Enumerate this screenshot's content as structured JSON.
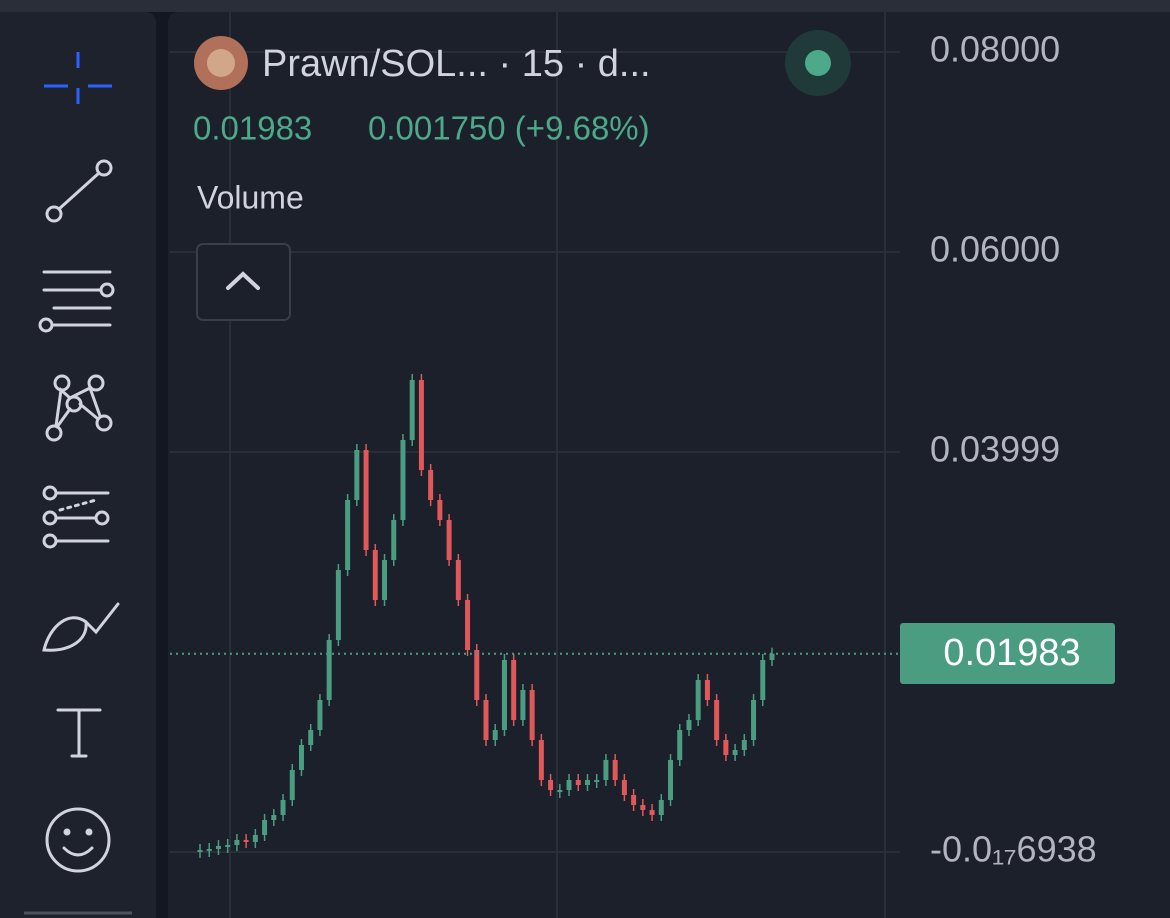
{
  "header": {
    "title": "Prawn/SOL... · 15 · d...",
    "price": "0.01983",
    "change": "0.001750 (+9.68%)",
    "indicator": "Volume"
  },
  "chart_data": {
    "type": "candlestick",
    "values": [
      0.0002,
      0.0003,
      0.0006,
      0.0007,
      0.0012,
      0.001,
      0.0017,
      0.0032,
      0.0037,
      0.0052,
      0.0082,
      0.0107,
      0.0122,
      0.0152,
      0.0212,
      0.0282,
      0.0352,
      0.0402,
      0.0302,
      0.0252,
      0.0292,
      0.0332,
      0.0412,
      0.0472,
      0.0382,
      0.0352,
      0.0332,
      0.0292,
      0.0252,
      0.0202,
      0.0152,
      0.0112,
      0.0122,
      0.0192,
      0.0132,
      0.0162,
      0.0112,
      0.0072,
      0.0062,
      0.0062,
      0.0072,
      0.0067,
      0.0072,
      0.0072,
      0.0092,
      0.0072,
      0.0057,
      0.0047,
      0.0042,
      0.0037,
      0.0052,
      0.0092,
      0.0122,
      0.0132,
      0.0172,
      0.0152,
      0.0112,
      0.0097,
      0.0102,
      0.0112,
      0.0152,
      0.0192,
      0.01983
    ],
    "up_color": "#4a9d80",
    "down_color": "#e0585a",
    "ylim": [
      -0.0066,
      0.084
    ],
    "yticks": [
      {
        "value": 0.08,
        "label": "0.08000"
      },
      {
        "value": 0.06,
        "label": "0.06000"
      },
      {
        "value": 0.04,
        "label": "0.03999"
      },
      {
        "value": 0,
        "label": "-0.0₁₇6938"
      }
    ],
    "grid": true
  }
}
